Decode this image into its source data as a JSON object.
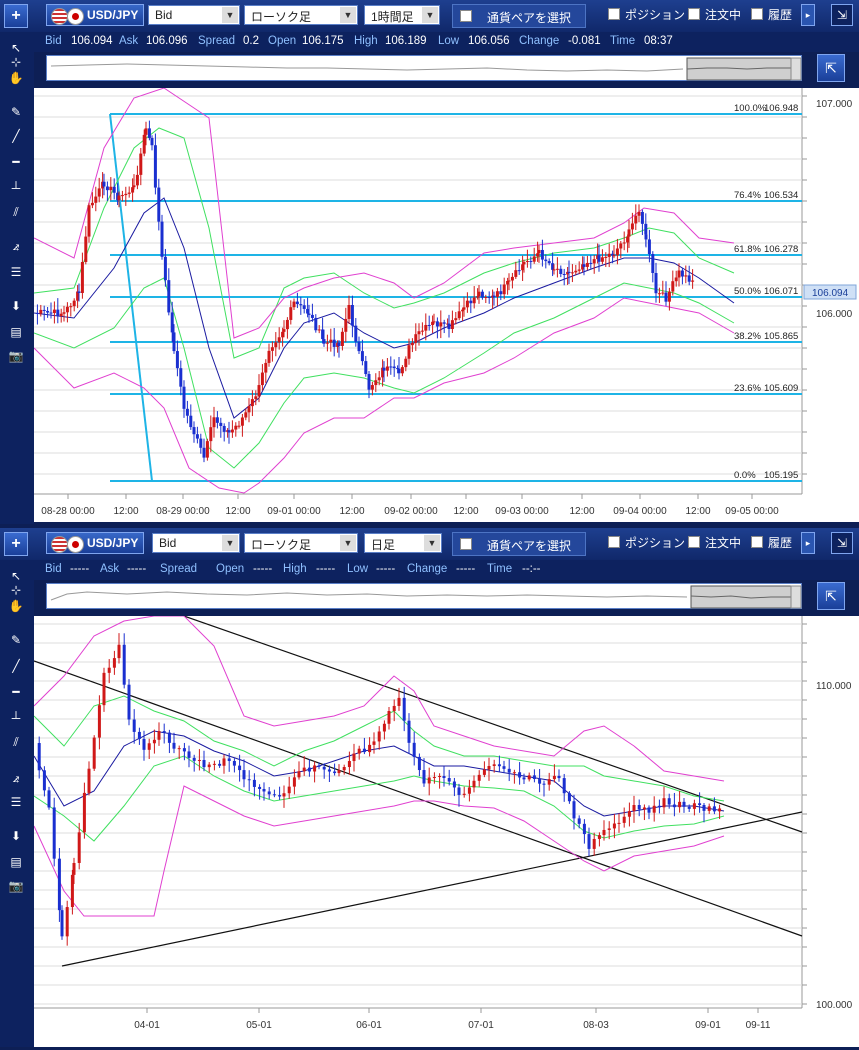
{
  "panel1": {
    "add_label": "+",
    "pair": "USD/JPY",
    "price_type": "Bid",
    "chart_type": "ローソク足",
    "timeframe": "1時間足",
    "select_pair": "通貨ペアを選択",
    "positions": "ポジション",
    "orders": "注文中",
    "history": "履歴",
    "quote": [
      {
        "label": "Bid",
        "value": "106.094"
      },
      {
        "label": "Ask",
        "value": "106.096"
      },
      {
        "label": "Spread",
        "value": "0.2"
      },
      {
        "label": "Open",
        "value": "106.175"
      },
      {
        "label": "High",
        "value": "106.189"
      },
      {
        "label": "Low",
        "value": "106.056"
      },
      {
        "label": "Change",
        "value": "-0.081"
      },
      {
        "label": "Time",
        "value": "08:37"
      }
    ],
    "current_price": "106.094",
    "price_axis": [
      "107.000",
      "106.000"
    ],
    "fib_levels": [
      {
        "pct": "100.0%",
        "value": "106.948"
      },
      {
        "pct": "76.4%",
        "value": "106.534"
      },
      {
        "pct": "61.8%",
        "value": "106.278"
      },
      {
        "pct": "50.0%",
        "value": "106.071"
      },
      {
        "pct": "38.2%",
        "value": "105.865"
      },
      {
        "pct": "23.6%",
        "value": "105.609"
      },
      {
        "pct": "0.0%",
        "value": "105.195"
      }
    ],
    "time_axis": [
      "08-28 00:00",
      "12:00",
      "08-29 00:00",
      "12:00",
      "09-01 00:00",
      "12:00",
      "09-02 00:00",
      "12:00",
      "09-03 00:00",
      "12:00",
      "09-04 00:00",
      "12:00",
      "09-05 00:00"
    ]
  },
  "panel2": {
    "add_label": "+",
    "pair": "USD/JPY",
    "price_type": "Bid",
    "chart_type": "ローソク足",
    "timeframe": "日足",
    "select_pair": "通貨ペアを選択",
    "positions": "ポジション",
    "orders": "注文中",
    "history": "履歴",
    "quote": [
      {
        "label": "Bid",
        "value": "-----"
      },
      {
        "label": "Ask",
        "value": "-----"
      },
      {
        "label": "Spread",
        "value": ""
      },
      {
        "label": "Open",
        "value": "-----"
      },
      {
        "label": "High",
        "value": "-----"
      },
      {
        "label": "Low",
        "value": "-----"
      },
      {
        "label": "Change",
        "value": "-----"
      },
      {
        "label": "Time",
        "value": "--:--"
      }
    ],
    "price_axis": [
      "110.000",
      "100.000"
    ],
    "time_axis": [
      "04-01",
      "05-01",
      "06-01",
      "07-01",
      "08-03",
      "09-01",
      "09-11"
    ]
  },
  "colors": {
    "background": "#0d1f55",
    "fib_line": "#1eb4e6",
    "upper_band": "#e040d0",
    "middle_band": "#40e060",
    "moving_avg": "#1a1aa0",
    "bull_candle": "#d01818",
    "bear_candle": "#1a2fd0"
  },
  "icons": [
    "cursor-icon",
    "crosshair-icon",
    "hand-icon",
    "pen-icon",
    "trendline-icon",
    "horizontal-line-icon",
    "vertical-line-icon",
    "parallel-lines-icon",
    "fibonacci-icon",
    "fib-retracement-icon",
    "arrow-down-icon",
    "list-icon",
    "camera-icon",
    "expand-icon"
  ]
}
